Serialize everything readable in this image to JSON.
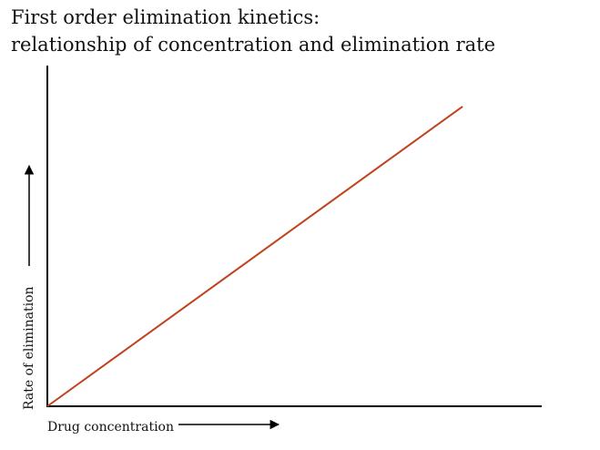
{
  "chart_data": {
    "type": "line",
    "title": [
      "First order elimination kinetics:",
      "relationship of concentration and elimination rate"
    ],
    "xlabel": "Drug concentration",
    "ylabel": "Rate of elimination",
    "xlim": [
      0,
      1
    ],
    "ylim": [
      0,
      1
    ],
    "x": [
      0,
      0.84
    ],
    "series": [
      {
        "values": [
          0,
          0.88
        ]
      }
    ],
    "series_colors": [
      "#c0421d"
    ],
    "axis_color": "#000000",
    "grid": false,
    "ticks": false
  }
}
